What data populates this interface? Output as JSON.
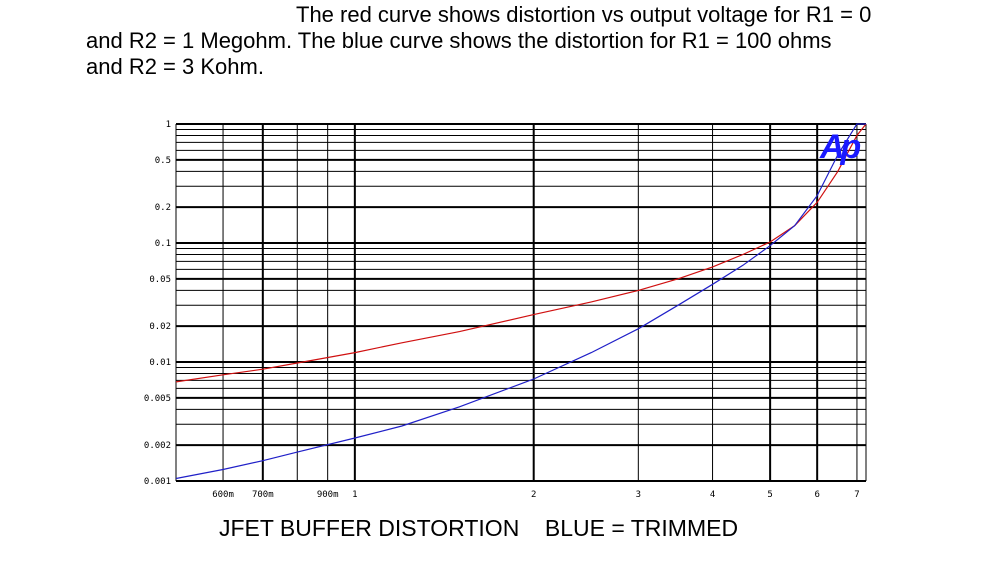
{
  "caption": {
    "line1": "The red curve shows distortion vs output voltage for R1 = 0",
    "line2": "and R2 = 1 Megohm.  The blue curve shows the distortion for R1 = 100 ohms",
    "line3": "and R2 = 3 Kohm."
  },
  "chart_data": {
    "type": "line",
    "title": "JFET BUFFER DISTORTION    BLUE = TRIMMED",
    "xscale": "log",
    "yscale": "log",
    "xlim": [
      0.5,
      7.25
    ],
    "ylim": [
      0.001,
      1
    ],
    "grid": true,
    "logo": "Ap",
    "y_tick_labels": [
      "1",
      "0.5",
      "0.2",
      "0.1",
      "0.05",
      "0.02",
      "0.01",
      "0.005",
      "0.002",
      "0.001"
    ],
    "x_tick_labels": [
      "600m",
      "700m",
      "900m",
      "1",
      "2",
      "3",
      "4",
      "5",
      "6",
      "7"
    ],
    "series": [
      {
        "color": "#d01010",
        "x": [
          0.5,
          0.6,
          0.7,
          0.8,
          1.0,
          1.2,
          1.5,
          2.0,
          2.5,
          3.0,
          3.5,
          4.0,
          4.5,
          5.0,
          5.5,
          6.0,
          6.5,
          7.0,
          7.25
        ],
        "y": [
          0.0068,
          0.0078,
          0.0087,
          0.0098,
          0.012,
          0.0145,
          0.018,
          0.025,
          0.032,
          0.04,
          0.05,
          0.063,
          0.08,
          0.102,
          0.14,
          0.22,
          0.4,
          0.8,
          1.0
        ]
      },
      {
        "color": "#2020c8",
        "x": [
          0.5,
          0.6,
          0.7,
          0.8,
          1.0,
          1.2,
          1.5,
          2.0,
          2.5,
          3.0,
          3.5,
          4.0,
          4.5,
          5.0,
          5.5,
          6.0,
          6.5,
          7.0,
          7.25
        ],
        "y": [
          0.00105,
          0.00125,
          0.00148,
          0.00175,
          0.0023,
          0.0029,
          0.0042,
          0.0072,
          0.012,
          0.019,
          0.03,
          0.045,
          0.065,
          0.095,
          0.14,
          0.25,
          0.55,
          1.0,
          1.0
        ]
      }
    ]
  }
}
